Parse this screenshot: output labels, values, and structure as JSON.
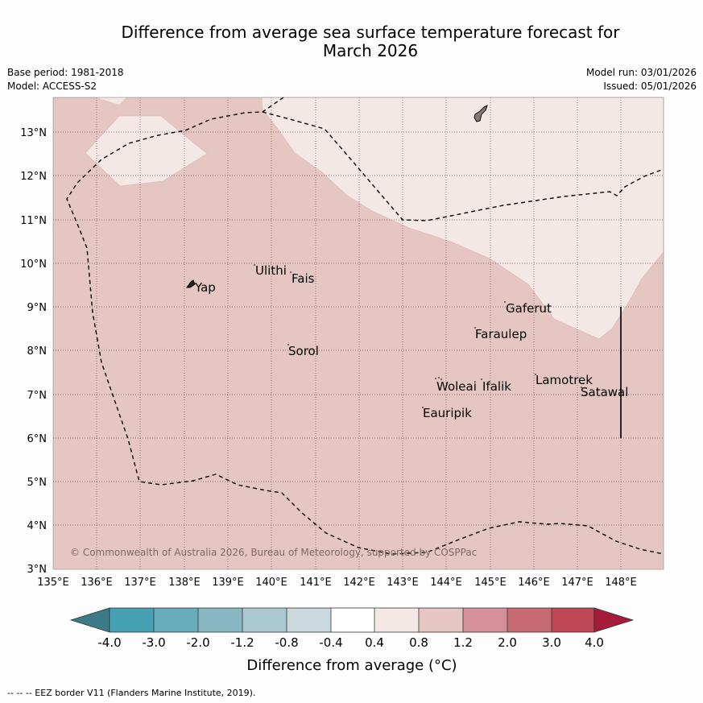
{
  "title": {
    "line1": "Difference from average sea surface temperature forecast for",
    "line2": "March 2026"
  },
  "meta": {
    "base_period": "Base period: 1981-2018",
    "model": "Model: ACCESS-S2",
    "model_run": "Model run: 03/01/2026",
    "issued": "Issued: 05/01/2026"
  },
  "map": {
    "lat_labels": [
      "13°N",
      "12°N",
      "11°N",
      "10°N",
      "9°N",
      "8°N",
      "7°N",
      "6°N",
      "5°N",
      "4°N",
      "3°N"
    ],
    "lon_labels": [
      "135°E",
      "136°E",
      "137°E",
      "138°E",
      "139°E",
      "140°E",
      "141°E",
      "142°E",
      "143°E",
      "144°E",
      "145°E",
      "146°E",
      "147°E",
      "148°E"
    ],
    "places": {
      "yap": "Yap",
      "ulithi": "Ulithi",
      "fais": "Fais",
      "gaferut": "Gaferut",
      "faraulep": "Faraulep",
      "sorol": "Sorol",
      "woleai": "Woleai",
      "ifalik": "Ifalik",
      "lamotrek": "Lamotrek",
      "satawal": "Satawal",
      "eauripik": "Eauripik"
    },
    "copyright": "© Commonwealth of Australia 2026, Bureau of Meteorology, supported by COSPPac"
  },
  "colorbar": {
    "ticks": [
      "-4.0",
      "-3.0",
      "-2.0",
      "-1.2",
      "-0.8",
      "-0.4",
      "0.4",
      "0.8",
      "1.2",
      "2.0",
      "3.0",
      "4.0"
    ],
    "colors": [
      "#3c7a87",
      "#45a1b2",
      "#68adbb",
      "#88b7c3",
      "#a9c8cf",
      "#c9d9dd",
      "#ffffff",
      "#f4e8e6",
      "#e6c6c2",
      "#d5909a",
      "#c86a74",
      "#bf4655",
      "#a51c3b"
    ],
    "label": "Difference from average (°C)"
  },
  "footnote": "--  --  -- EEZ border V11 (Flanders Marine Institute, 2019)."
}
